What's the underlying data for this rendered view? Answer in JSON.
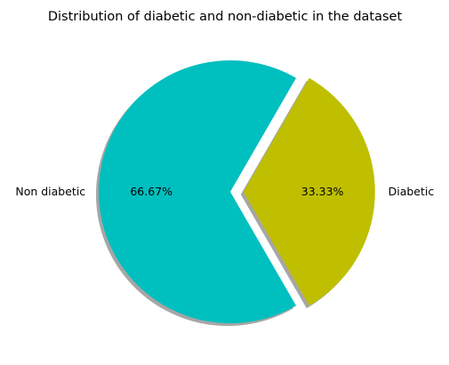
{
  "chart_data": {
    "type": "pie",
    "title": "Distribution of diabetic and non-diabetic in the dataset",
    "categories": [
      "Non diabetic",
      "Diabetic"
    ],
    "values": [
      66.67,
      33.33
    ],
    "autopct": [
      "66.67%",
      "33.33%"
    ],
    "colors": [
      "#00bfbf",
      "#bfbf00"
    ],
    "explode": [
      0,
      0.1
    ],
    "shadow": true,
    "start_angle_deg": 60
  }
}
